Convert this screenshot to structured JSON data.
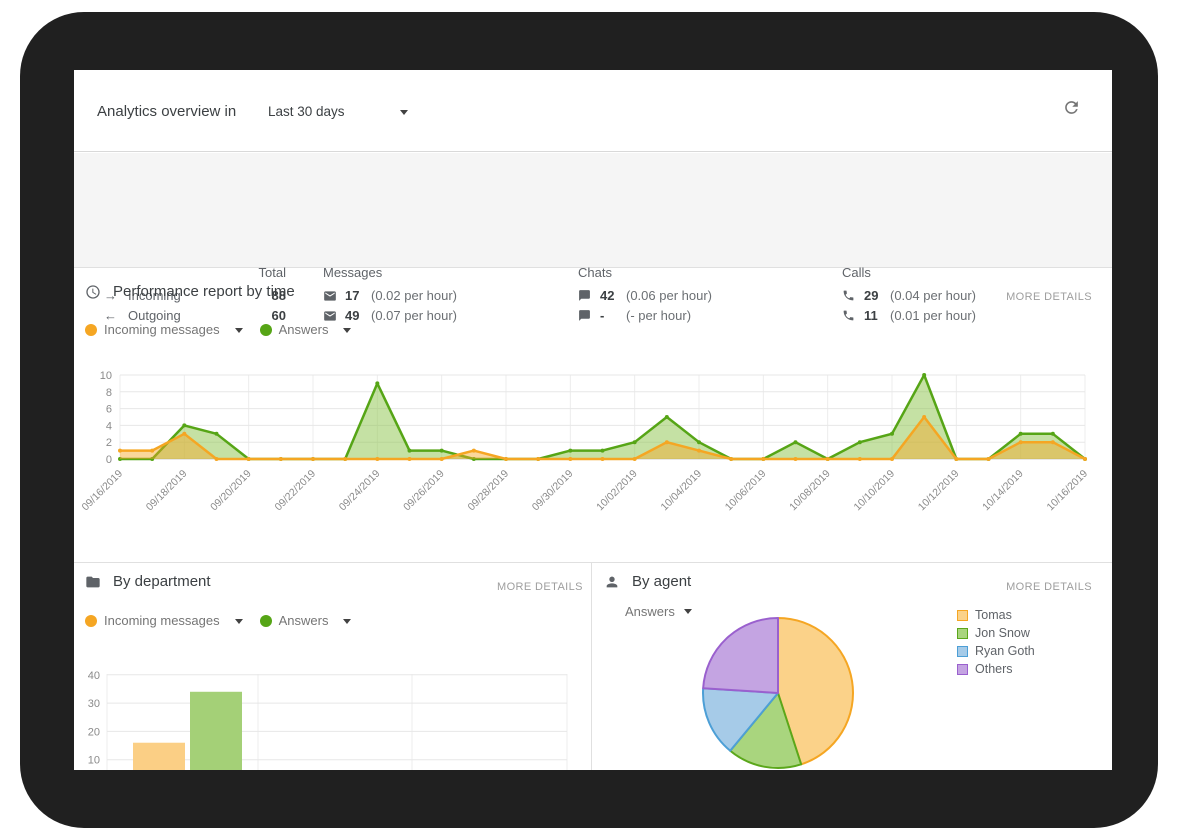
{
  "header": {
    "title": "Analytics overview in",
    "range_selector": {
      "value": "Last 30 days"
    }
  },
  "stats": {
    "columns": {
      "total": "Total",
      "messages": "Messages",
      "chats": "Chats",
      "calls": "Calls"
    },
    "rows": [
      {
        "dir": "→",
        "label": "Incoming",
        "total": "88",
        "messages": {
          "value": "17",
          "rate": "(0.02 per hour)"
        },
        "chats": {
          "value": "42",
          "rate": "(0.06 per hour)"
        },
        "calls": {
          "value": "29",
          "rate": "(0.04 per hour)"
        }
      },
      {
        "dir": "←",
        "label": "Outgoing",
        "total": "60",
        "messages": {
          "value": "49",
          "rate": "(0.07 per hour)"
        },
        "chats": {
          "value": "-",
          "rate": "(- per hour)"
        },
        "calls": {
          "value": "11",
          "rate": "(0.01 per hour)"
        }
      }
    ]
  },
  "performance": {
    "title": "Performance report by time",
    "more_details": "MORE DETAILS",
    "legend": [
      {
        "label": "Incoming messages",
        "color": "#F5A623"
      },
      {
        "label": "Answers",
        "color": "#56A516"
      }
    ]
  },
  "department": {
    "title": "By department",
    "more_details": "MORE DETAILS",
    "legend": [
      {
        "label": "Incoming messages",
        "color": "#F5A623"
      },
      {
        "label": "Answers",
        "color": "#56A516"
      }
    ]
  },
  "agent": {
    "title": "By agent",
    "more_details": "MORE DETAILS",
    "filter": {
      "value": "Answers"
    },
    "legend": [
      {
        "label": "Tomas"
      },
      {
        "label": "Jon Snow"
      },
      {
        "label": "Ryan Goth"
      },
      {
        "label": "Others"
      }
    ]
  },
  "chart_data": [
    {
      "name": "performance-report-by-time",
      "type": "area",
      "x": [
        "09/16/2019",
        "09/17/2019",
        "09/18/2019",
        "09/19/2019",
        "09/20/2019",
        "09/21/2019",
        "09/22/2019",
        "09/23/2019",
        "09/24/2019",
        "09/25/2019",
        "09/26/2019",
        "09/27/2019",
        "09/28/2019",
        "09/29/2019",
        "09/30/2019",
        "10/01/2019",
        "10/02/2019",
        "10/03/2019",
        "10/04/2019",
        "10/05/2019",
        "10/06/2019",
        "10/07/2019",
        "10/08/2019",
        "10/09/2019",
        "10/10/2019",
        "10/11/2019",
        "10/12/2019",
        "10/13/2019",
        "10/14/2019",
        "10/15/2019",
        "10/16/2019"
      ],
      "x_tick_every": 2,
      "series": [
        {
          "name": "Incoming messages",
          "color": "#F5A623",
          "fill": "rgba(245,166,35,0.45)",
          "values": [
            1,
            1,
            3,
            0,
            0,
            0,
            0,
            0,
            0,
            0,
            0,
            1,
            0,
            0,
            0,
            0,
            0,
            2,
            1,
            0,
            0,
            0,
            0,
            0,
            0,
            5,
            0,
            0,
            2,
            2,
            0
          ]
        },
        {
          "name": "Answers",
          "color": "#56A516",
          "fill": "rgba(139,195,74,0.5)",
          "values": [
            0,
            0,
            4,
            3,
            0,
            0,
            0,
            0,
            9,
            1,
            1,
            0,
            0,
            0,
            1,
            1,
            2,
            5,
            2,
            0,
            0,
            2,
            0,
            2,
            3,
            10,
            0,
            0,
            3,
            3,
            0
          ]
        }
      ],
      "ylim": [
        0,
        10
      ],
      "yticks": [
        0,
        2,
        4,
        6,
        8,
        10
      ],
      "grid": true,
      "legend_position": "top-left"
    },
    {
      "name": "by-department",
      "type": "bar",
      "categories": [
        ""
      ],
      "series": [
        {
          "name": "Incoming messages",
          "fill": "#FBCF85",
          "values": [
            16
          ]
        },
        {
          "name": "Answers",
          "fill": "#A4D077",
          "values": [
            34
          ]
        }
      ],
      "ylim": [
        0,
        45
      ],
      "yticks": [
        10,
        20,
        30,
        40
      ],
      "grid": true
    },
    {
      "name": "by-agent",
      "type": "pie",
      "labels": [
        "Tomas",
        "Jon Snow",
        "Ryan Goth",
        "Others"
      ],
      "values": [
        45,
        16,
        15,
        24
      ],
      "fills": [
        "#FBD289",
        "#A9D57E",
        "#A6CBE8",
        "#C4A4E2"
      ],
      "strokes": [
        "#F5A623",
        "#5BA71B",
        "#4D9FD6",
        "#9A60CE"
      ],
      "legend_position": "right"
    }
  ]
}
